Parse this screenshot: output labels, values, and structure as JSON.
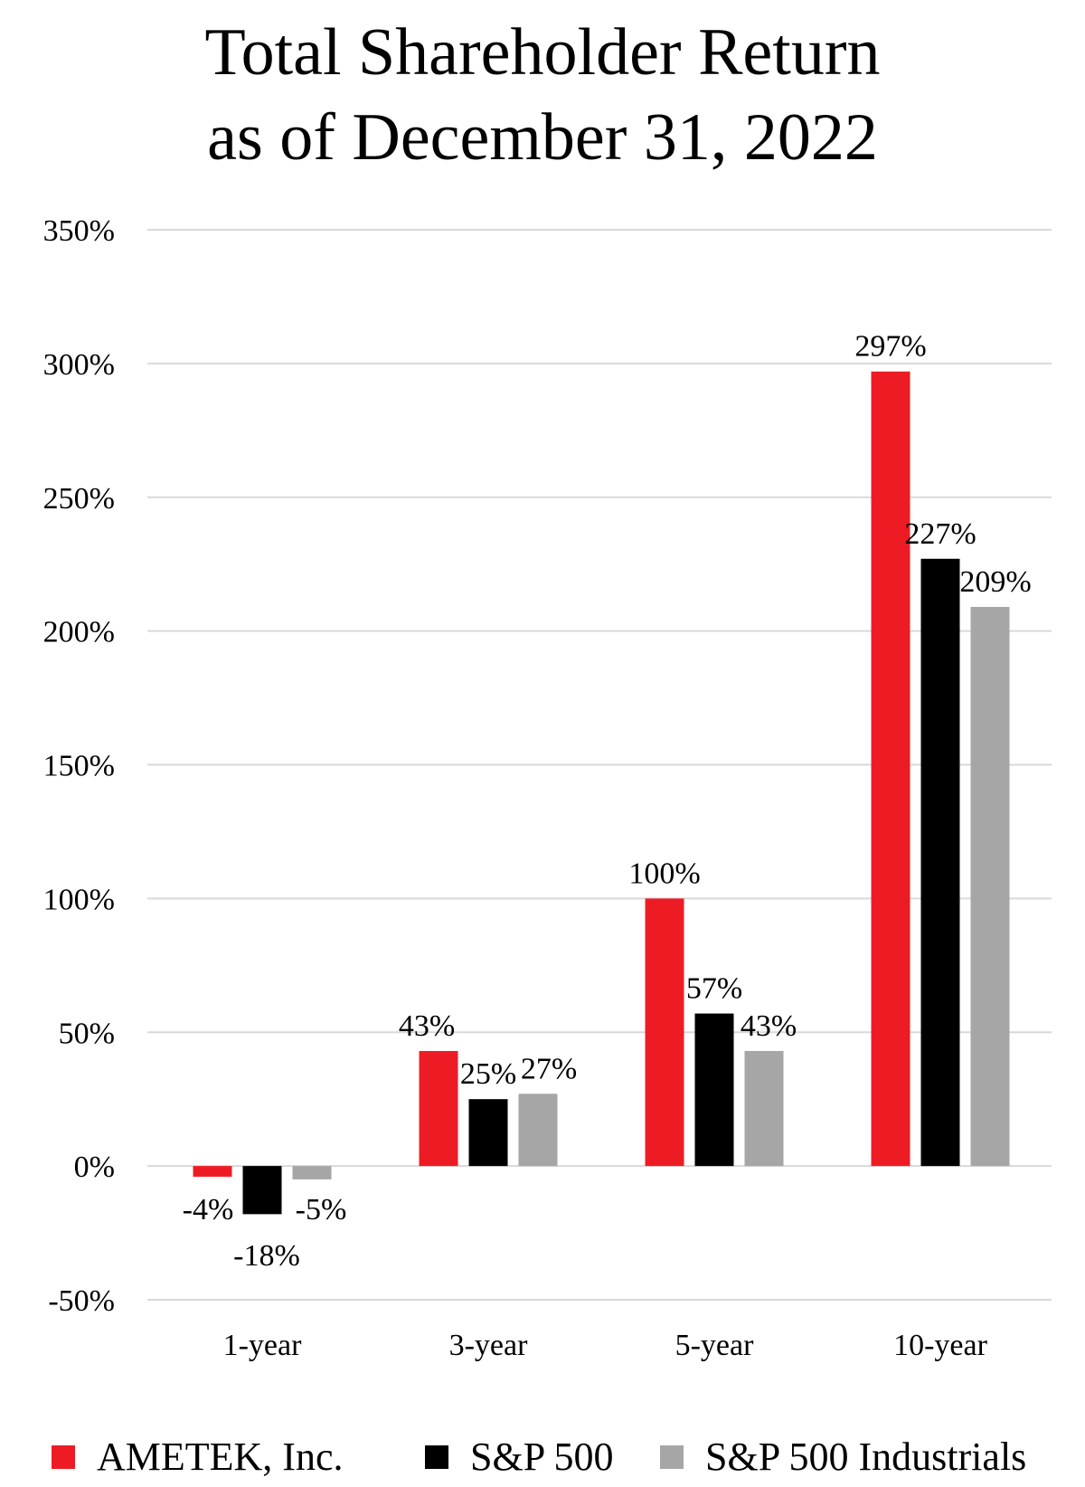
{
  "chart_data": {
    "type": "bar",
    "title": [
      "Total Shareholder Return",
      "as of December 31, 2022"
    ],
    "categories": [
      "1-year",
      "3-year",
      "5-year",
      "10-year"
    ],
    "series": [
      {
        "name": "AMETEK, Inc.",
        "color": "#ed1c24",
        "values": [
          -4,
          43,
          100,
          297
        ],
        "labels": [
          "-4%",
          "43%",
          "100%",
          "297%"
        ]
      },
      {
        "name": "S&P 500",
        "color": "#000000",
        "values": [
          -18,
          25,
          57,
          227
        ],
        "labels": [
          "-18%",
          "25%",
          "57%",
          "227%"
        ]
      },
      {
        "name": "S&P 500 Industrials",
        "color": "#a6a6a6",
        "values": [
          -5,
          27,
          43,
          209
        ],
        "labels": [
          "-5%",
          "27%",
          "43%",
          "209%"
        ]
      }
    ],
    "ylim": [
      -50,
      350
    ],
    "yticks": [
      350,
      300,
      250,
      200,
      150,
      100,
      50,
      0,
      -50
    ],
    "ytick_labels": [
      "350%",
      "300%",
      "250%",
      "200%",
      "150%",
      "100%",
      "50%",
      "0%",
      "-50%"
    ],
    "xlabel": "",
    "ylabel": "",
    "grid": true,
    "legend_position": "bottom"
  }
}
